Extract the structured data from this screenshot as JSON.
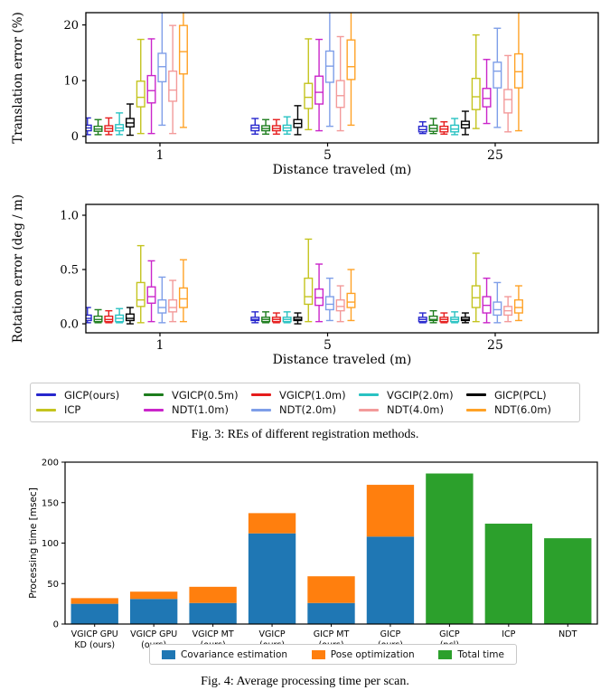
{
  "fig3": {
    "caption": "Fig. 3: REs of different registration methods.",
    "methods": [
      {
        "label": "GICP(ours)",
        "color": "#2727cd"
      },
      {
        "label": "VGICP(0.5m)",
        "color": "#1d7d1d"
      },
      {
        "label": "VGICP(1.0m)",
        "color": "#e51c1c"
      },
      {
        "label": "VGCIP(2.0m)",
        "color": "#29c2c2"
      },
      {
        "label": "GICP(PCL)",
        "color": "#000000"
      },
      {
        "label": "ICP",
        "color": "#c4c41f"
      },
      {
        "label": "NDT(1.0m)",
        "color": "#ca25ca"
      },
      {
        "label": "NDT(2.0m)",
        "color": "#7e9ee8"
      },
      {
        "label": "NDT(4.0m)",
        "color": "#f39a9a"
      },
      {
        "label": "NDT(6.0m)",
        "color": "#ffa226"
      }
    ]
  },
  "fig4": {
    "caption": "Fig. 4: Average processing time per scan.",
    "legend": [
      {
        "label": "Covariance estimation",
        "color": "#1f77b4"
      },
      {
        "label": "Pose optimization",
        "color": "#ff7f0e"
      },
      {
        "label": "Total time",
        "color": "#2ca02c"
      }
    ]
  },
  "chart_data": [
    {
      "id": "translation",
      "type": "boxplot",
      "ylabel": "Translation error (%)",
      "xlabel": "Distance traveled (m)",
      "yticks": [
        0,
        10,
        20
      ],
      "ytick_labels": [
        "0",
        "10",
        "20"
      ],
      "ylim": [
        -1.18,
        22.2
      ],
      "categories": [
        "1",
        "5",
        "25"
      ],
      "box_format": [
        "whisker_low",
        "q1",
        "median",
        "q3",
        "whisker_high"
      ],
      "series": [
        {
          "name": "GICP(ours)",
          "boxes": [
            [
              0.3,
              1.0,
              1.5,
              2.0,
              3.3
            ],
            [
              0.4,
              1.0,
              1.5,
              2.0,
              3.2
            ],
            [
              0.5,
              0.8,
              1.2,
              1.8,
              2.6
            ]
          ]
        },
        {
          "name": "VGICP(0.5m)",
          "boxes": [
            [
              0.3,
              0.9,
              1.3,
              1.8,
              3.0
            ],
            [
              0.4,
              1.0,
              1.4,
              1.9,
              3.0
            ],
            [
              0.5,
              0.9,
              1.4,
              2.0,
              3.2
            ]
          ]
        },
        {
          "name": "VGICP(1.0m)",
          "boxes": [
            [
              0.3,
              0.9,
              1.4,
              1.9,
              3.3
            ],
            [
              0.4,
              1.0,
              1.4,
              1.9,
              3.0
            ],
            [
              0.4,
              0.8,
              1.3,
              1.8,
              2.6
            ]
          ]
        },
        {
          "name": "VGCIP(2.0m)",
          "boxes": [
            [
              0.3,
              1.0,
              1.5,
              2.1,
              4.2
            ],
            [
              0.4,
              1.0,
              1.5,
              2.0,
              3.5
            ],
            [
              0.3,
              0.8,
              1.3,
              2.0,
              3.2
            ]
          ]
        },
        {
          "name": "GICP(PCL)",
          "boxes": [
            [
              0.2,
              1.7,
              2.4,
              3.2,
              5.8
            ],
            [
              0.3,
              1.6,
              2.3,
              3.0,
              5.5
            ],
            [
              0.3,
              1.5,
              2.1,
              2.7,
              4.5
            ]
          ]
        },
        {
          "name": "ICP",
          "boxes": [
            [
              0.5,
              5.3,
              7.0,
              9.9,
              17.4
            ],
            [
              1.2,
              5.0,
              7.0,
              9.5,
              17.5
            ],
            [
              1.4,
              4.8,
              7.1,
              10.4,
              18.2
            ]
          ]
        },
        {
          "name": "NDT(1.0m)",
          "boxes": [
            [
              0.5,
              6.0,
              8.2,
              10.9,
              17.5
            ],
            [
              1.0,
              5.8,
              7.9,
              10.8,
              17.4
            ],
            [
              2.3,
              5.3,
              6.8,
              8.6,
              13.8
            ]
          ]
        },
        {
          "name": "NDT(2.0m)",
          "boxes": [
            [
              2.0,
              9.8,
              12.5,
              14.9,
              23.0
            ],
            [
              1.8,
              9.7,
              12.6,
              15.3,
              23.0
            ],
            [
              1.6,
              8.7,
              11.7,
              13.3,
              19.4
            ]
          ]
        },
        {
          "name": "NDT(4.0m)",
          "boxes": [
            [
              0.5,
              6.3,
              8.3,
              11.7,
              19.9
            ],
            [
              1.0,
              5.2,
              7.3,
              10.0,
              17.9
            ],
            [
              0.8,
              4.2,
              6.6,
              8.4,
              14.5
            ]
          ]
        },
        {
          "name": "NDT(6.0m)",
          "boxes": [
            [
              1.6,
              11.2,
              15.2,
              19.9,
              23.0
            ],
            [
              2.0,
              10.2,
              12.5,
              17.3,
              23.0
            ],
            [
              1.0,
              8.7,
              11.6,
              14.8,
              23.0
            ]
          ]
        }
      ]
    },
    {
      "id": "rotation",
      "type": "boxplot",
      "ylabel": "Rotation error (deg / m)",
      "xlabel": "Distance traveled (m)",
      "yticks": [
        0,
        0.5,
        1.0
      ],
      "ytick_labels": [
        "0.0",
        "0.5",
        "1.0"
      ],
      "ylim": [
        -0.083,
        1.1
      ],
      "categories": [
        "1",
        "5",
        "25"
      ],
      "box_format": [
        "whisker_low",
        "q1",
        "median",
        "q3",
        "whisker_high"
      ],
      "series": [
        {
          "name": "GICP(ours)",
          "boxes": [
            [
              0.01,
              0.03,
              0.05,
              0.08,
              0.15
            ],
            [
              0.01,
              0.03,
              0.04,
              0.06,
              0.11
            ],
            [
              0.01,
              0.02,
              0.04,
              0.06,
              0.1
            ]
          ]
        },
        {
          "name": "VGICP(0.5m)",
          "boxes": [
            [
              0.01,
              0.02,
              0.04,
              0.07,
              0.13
            ],
            [
              0.01,
              0.02,
              0.04,
              0.06,
              0.11
            ],
            [
              0.01,
              0.03,
              0.04,
              0.07,
              0.12
            ]
          ]
        },
        {
          "name": "VGICP(1.0m)",
          "boxes": [
            [
              0.01,
              0.02,
              0.04,
              0.07,
              0.12
            ],
            [
              0.01,
              0.02,
              0.04,
              0.06,
              0.1
            ],
            [
              0.01,
              0.02,
              0.04,
              0.06,
              0.1
            ]
          ]
        },
        {
          "name": "VGCIP(2.0m)",
          "boxes": [
            [
              0.01,
              0.02,
              0.05,
              0.08,
              0.14
            ],
            [
              0.01,
              0.02,
              0.04,
              0.06,
              0.11
            ],
            [
              0.01,
              0.02,
              0.04,
              0.06,
              0.11
            ]
          ]
        },
        {
          "name": "GICP(PCL)",
          "boxes": [
            [
              0.0,
              0.03,
              0.05,
              0.09,
              0.15
            ],
            [
              0.0,
              0.03,
              0.04,
              0.06,
              0.1
            ],
            [
              0.01,
              0.03,
              0.04,
              0.06,
              0.1
            ]
          ]
        },
        {
          "name": "ICP",
          "boxes": [
            [
              0.01,
              0.16,
              0.22,
              0.38,
              0.72
            ],
            [
              0.02,
              0.18,
              0.25,
              0.42,
              0.78
            ],
            [
              0.02,
              0.15,
              0.24,
              0.35,
              0.65
            ]
          ]
        },
        {
          "name": "NDT(1.0m)",
          "boxes": [
            [
              0.02,
              0.19,
              0.25,
              0.34,
              0.58
            ],
            [
              0.02,
              0.17,
              0.24,
              0.32,
              0.55
            ],
            [
              0.01,
              0.1,
              0.17,
              0.25,
              0.42
            ]
          ]
        },
        {
          "name": "NDT(2.0m)",
          "boxes": [
            [
              0.01,
              0.1,
              0.15,
              0.22,
              0.43
            ],
            [
              0.03,
              0.13,
              0.18,
              0.25,
              0.42
            ],
            [
              0.01,
              0.08,
              0.13,
              0.2,
              0.38
            ]
          ]
        },
        {
          "name": "NDT(4.0m)",
          "boxes": [
            [
              0.02,
              0.11,
              0.15,
              0.22,
              0.4
            ],
            [
              0.02,
              0.12,
              0.16,
              0.22,
              0.35
            ],
            [
              0.02,
              0.08,
              0.12,
              0.16,
              0.25
            ]
          ]
        },
        {
          "name": "NDT(6.0m)",
          "boxes": [
            [
              0.02,
              0.15,
              0.23,
              0.33,
              0.59
            ],
            [
              0.03,
              0.15,
              0.2,
              0.28,
              0.5
            ],
            [
              0.03,
              0.1,
              0.15,
              0.22,
              0.35
            ]
          ]
        }
      ]
    },
    {
      "id": "processing-time",
      "type": "bar",
      "stacked": true,
      "ylabel": "Processing time [msec]",
      "yticks": [
        0,
        50,
        100,
        150,
        200
      ],
      "ytick_labels": [
        "0",
        "50",
        "100",
        "150",
        "200"
      ],
      "ylim": [
        0,
        200
      ],
      "categories": [
        "VGICP GPU\nKD (ours)",
        "VGICP GPU\n(ours)",
        "VGICP MT\n(ours)",
        "VGICP\n(ours)",
        "GICP MT\n(ours)",
        "GICP\n(ours)",
        "GICP\n(pcl)",
        "ICP",
        "NDT"
      ],
      "series": [
        {
          "name": "Covariance estimation",
          "color": "#1f77b4",
          "values": [
            25,
            31,
            26,
            112,
            26,
            108,
            0,
            0,
            0
          ]
        },
        {
          "name": "Pose optimization",
          "color": "#ff7f0e",
          "values": [
            7,
            9,
            20,
            25,
            33,
            64,
            0,
            0,
            0
          ]
        },
        {
          "name": "Total time",
          "color": "#2ca02c",
          "values": [
            0,
            0,
            0,
            0,
            0,
            0,
            186,
            124,
            106
          ]
        }
      ]
    }
  ]
}
